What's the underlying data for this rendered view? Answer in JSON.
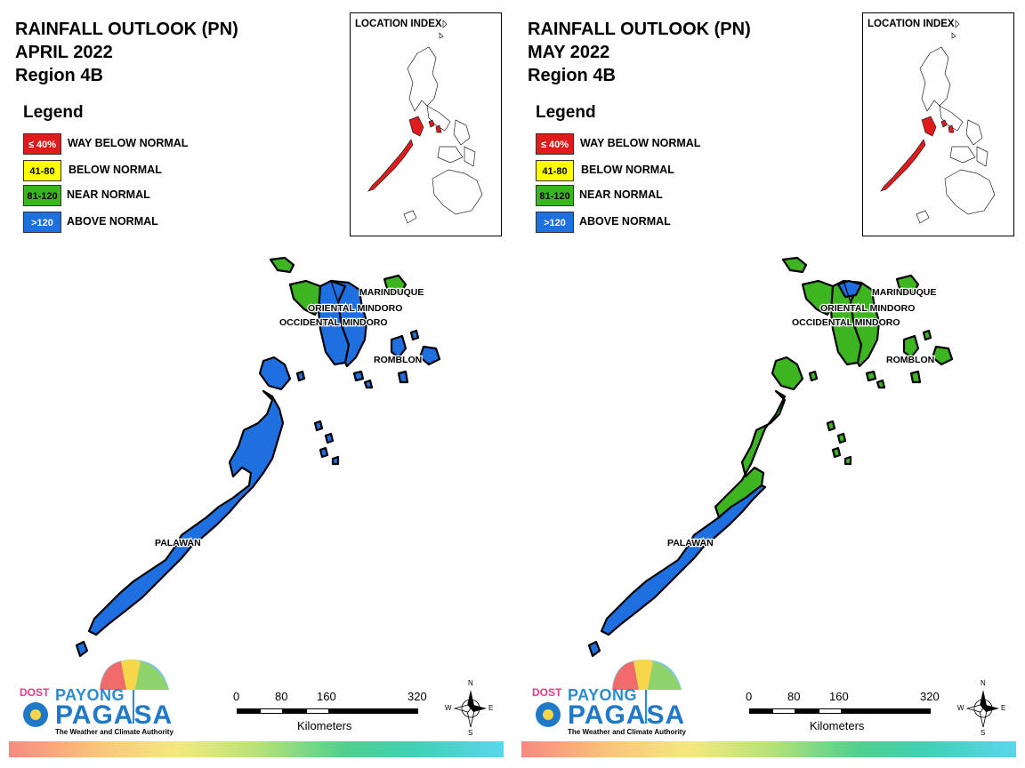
{
  "panels": [
    {
      "title_line1": "RAINFALL OUTLOOK (PN)",
      "title_line2": "APRIL 2022",
      "title_line3": "Region 4B",
      "legend_title": "Legend",
      "legend": [
        {
          "swatch": "≤ 40%",
          "label": "WAY BELOW NORMAL",
          "color": "#e01b1b",
          "text_color": "#ffffff"
        },
        {
          "swatch": "41-80",
          "label": "BELOW NORMAL",
          "color": "#ffff00",
          "text_color": "#000000"
        },
        {
          "swatch": "81-120",
          "label": "NEAR NORMAL",
          "color": "#3cb521",
          "text_color": "#000000"
        },
        {
          "swatch": ">120",
          "label": "ABOVE NORMAL",
          "color": "#1e6fe0",
          "text_color": "#ffffff"
        }
      ],
      "location_index_title": "LOCATION INDEX",
      "regions": {
        "marinduque": {
          "label": "MARINDUQUE",
          "category": "NEAR NORMAL"
        },
        "oriental_mindoro": {
          "label": "ORIENTAL MINDORO",
          "category": "ABOVE NORMAL"
        },
        "occidental_mindoro": {
          "label": "OCCIDENTAL MINDORO",
          "category": "ABOVE NORMAL"
        },
        "romblon": {
          "label": "ROMBLON",
          "category": "ABOVE NORMAL"
        },
        "palawan": {
          "label": "PALAWAN",
          "category": "ABOVE NORMAL"
        }
      },
      "scale": {
        "ticks": [
          "0",
          "80",
          "160",
          "320"
        ],
        "unit": "Kilometers"
      },
      "compass": {
        "n": "N",
        "e": "E",
        "s": "S",
        "w": "W"
      },
      "logo": {
        "dost": "DOST",
        "payong": "PAYONG",
        "pagasa": "PAGASA",
        "tagline": "The Weather and Climate Authority"
      }
    },
    {
      "title_line1": "RAINFALL OUTLOOK (PN)",
      "title_line2": "MAY 2022",
      "title_line3": "Region 4B",
      "legend_title": "Legend",
      "legend": [
        {
          "swatch": "≤ 40%",
          "label": "WAY BELOW NORMAL",
          "color": "#e01b1b",
          "text_color": "#ffffff"
        },
        {
          "swatch": "41-80",
          "label": "BELOW NORMAL",
          "color": "#ffff00",
          "text_color": "#000000"
        },
        {
          "swatch": "81-120",
          "label": "NEAR NORMAL",
          "color": "#3cb521",
          "text_color": "#000000"
        },
        {
          "swatch": ">120",
          "label": "ABOVE NORMAL",
          "color": "#1e6fe0",
          "text_color": "#ffffff"
        }
      ],
      "location_index_title": "LOCATION INDEX",
      "regions": {
        "marinduque": {
          "label": "MARINDUQUE",
          "category": "NEAR NORMAL"
        },
        "oriental_mindoro": {
          "label": "ORIENTAL MINDORO",
          "category": "NEAR NORMAL"
        },
        "occidental_mindoro": {
          "label": "OCCIDENTAL MINDORO",
          "category": "NEAR NORMAL"
        },
        "romblon": {
          "label": "ROMBLON",
          "category": "NEAR NORMAL"
        },
        "palawan": {
          "label": "PALAWAN",
          "category": "ABOVE NORMAL"
        }
      },
      "scale": {
        "ticks": [
          "0",
          "80",
          "160",
          "320"
        ],
        "unit": "Kilometers"
      },
      "compass": {
        "n": "N",
        "e": "E",
        "s": "S",
        "w": "W"
      },
      "logo": {
        "dost": "DOST",
        "payong": "PAYONG",
        "pagasa": "PAGASA",
        "tagline": "The Weather and Climate Authority"
      }
    }
  ],
  "colors": {
    "near_normal": "#3cb521",
    "above_normal": "#1e6fe0",
    "way_below_normal": "#e01b1b",
    "outline": "#000000"
  }
}
